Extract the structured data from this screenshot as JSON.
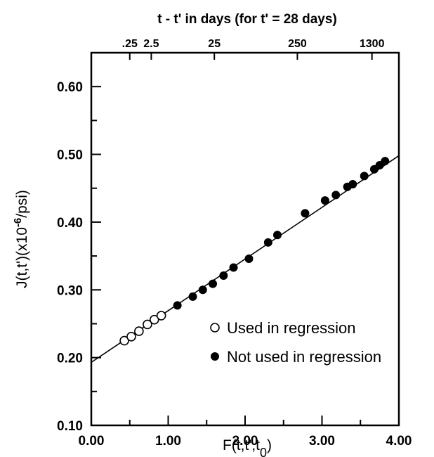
{
  "chart_data": {
    "type": "scatter",
    "top_axis_title": "t - t' in days (for t' = 28 days)",
    "top_ticks": [
      {
        "label": ".25",
        "x": 0.5
      },
      {
        "label": "2.5",
        "x": 0.78
      },
      {
        "label": "25",
        "x": 1.6
      },
      {
        "label": "250",
        "x": 2.68
      },
      {
        "label": "1300",
        "x": 3.65
      }
    ],
    "ylabel": "J(t,t')(x10^-6/psi)",
    "ylabel_main": "J(t,t')(x10",
    "ylabel_exp": "-6",
    "ylabel_tail": "/psi)",
    "xlabel_main": "F(t,t',t",
    "xlabel_sub": "0",
    "xlabel_tail": ")",
    "xlim": [
      0,
      4
    ],
    "ylim": [
      0.1,
      0.65
    ],
    "x_ticks": [
      "0.00",
      "1.00",
      "2.00",
      "3.00",
      "4.00"
    ],
    "y_ticks": [
      "0.10",
      "0.20",
      "0.30",
      "0.40",
      "0.50",
      "0.60"
    ],
    "regression_line": {
      "x": [
        0,
        4
      ],
      "y": [
        0.193,
        0.498
      ]
    },
    "series": [
      {
        "name": "Used in regression",
        "marker": "open-circle",
        "x": [
          0.43,
          0.52,
          0.62,
          0.73,
          0.82,
          0.91
        ],
        "y": [
          0.225,
          0.231,
          0.239,
          0.249,
          0.256,
          0.262
        ]
      },
      {
        "name": "Not used in regression",
        "marker": "filled-circle",
        "x": [
          1.12,
          1.32,
          1.45,
          1.58,
          1.72,
          1.85,
          2.05,
          2.3,
          2.42,
          2.78,
          3.04,
          3.18,
          3.33,
          3.4,
          3.55,
          3.68,
          3.75,
          3.82
        ],
        "y": [
          0.277,
          0.29,
          0.3,
          0.309,
          0.321,
          0.333,
          0.346,
          0.37,
          0.381,
          0.413,
          0.432,
          0.44,
          0.452,
          0.456,
          0.468,
          0.478,
          0.484,
          0.49
        ]
      }
    ],
    "legend": {
      "placement": "lower-right",
      "entries": [
        "Used in regression",
        "Not used in regression"
      ]
    }
  }
}
